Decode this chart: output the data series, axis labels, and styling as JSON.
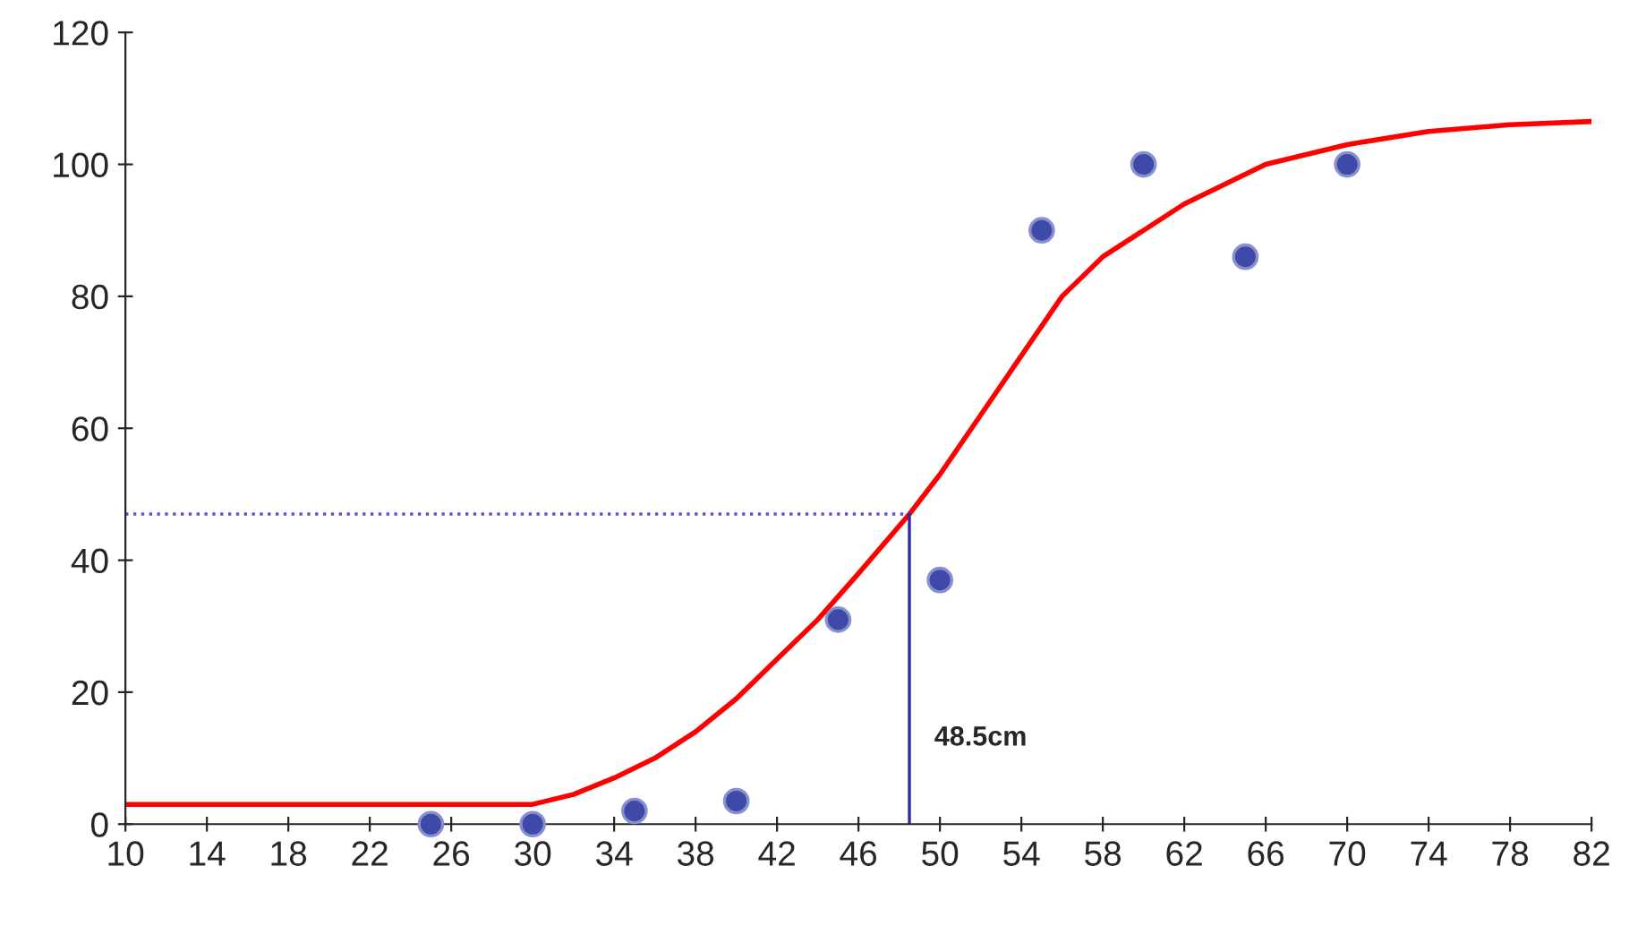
{
  "chart_data": {
    "type": "scatter",
    "series": [
      {
        "type": "line",
        "color": "#ff0000",
        "line_style": "solid",
        "marker": "none",
        "x": [
          10,
          20,
          30,
          32,
          34,
          36,
          38,
          40,
          42,
          44,
          46,
          48.5,
          50,
          52,
          54,
          56,
          58,
          60,
          62,
          66,
          70,
          74,
          78,
          82
        ],
        "values": [
          3,
          3,
          3,
          4.5,
          7,
          10,
          14,
          19,
          25,
          31,
          38,
          47,
          53,
          62,
          71,
          80,
          86,
          90,
          94,
          100,
          103,
          105,
          106,
          106.5
        ]
      },
      {
        "color": "#3f4aa8",
        "marker": "circle",
        "x": [
          25,
          30,
          35,
          40,
          45,
          50,
          55,
          60,
          65,
          70
        ],
        "values": [
          0,
          0,
          2,
          3.5,
          31,
          37,
          90,
          100,
          86,
          100
        ]
      },
      {
        "type": "line",
        "color": "#5555cc",
        "line_style": "dotted",
        "marker": "none",
        "x": [
          10,
          48.5
        ],
        "values": [
          47,
          47
        ]
      },
      {
        "type": "line",
        "color": "#2a2aa0",
        "line_style": "solid",
        "marker": "none",
        "x": [
          48.5,
          48.5
        ],
        "values": [
          47,
          0
        ]
      }
    ],
    "annotations": [
      {
        "text": "48.5cm",
        "x": 48.5,
        "y": 13
      }
    ],
    "xlim": [
      10,
      82
    ],
    "xticks": [
      10,
      14,
      18,
      22,
      26,
      30,
      34,
      38,
      42,
      46,
      50,
      54,
      58,
      62,
      66,
      70,
      74,
      78,
      82
    ],
    "ylim": [
      0,
      120
    ],
    "yticks": [
      0,
      20,
      40,
      60,
      80,
      100,
      120
    ],
    "grid": false,
    "legend": false
  }
}
